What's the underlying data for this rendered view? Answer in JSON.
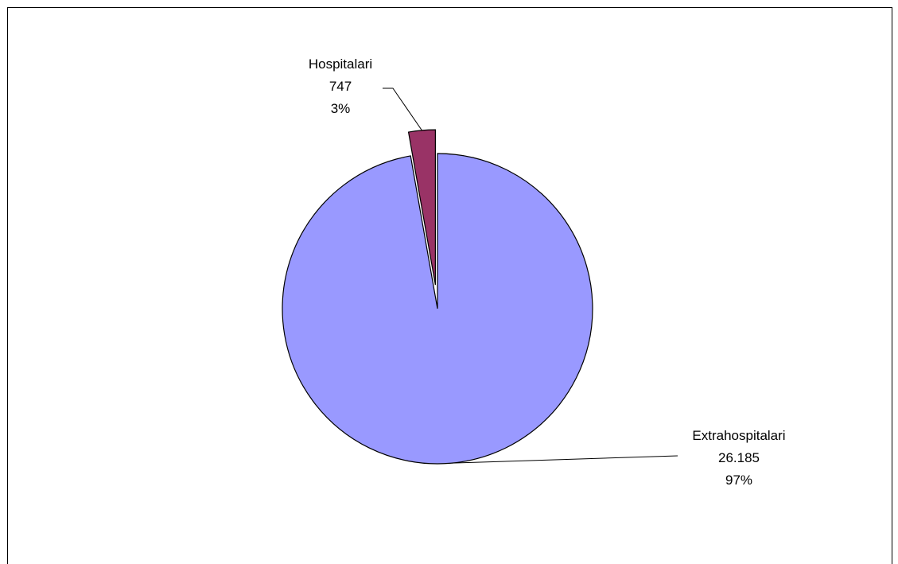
{
  "chart_data": {
    "type": "pie",
    "slices": [
      {
        "label": "Hospitalari",
        "value": 747,
        "value_label": "747",
        "percent_label": "3%",
        "color": "#993366",
        "exploded": true
      },
      {
        "label": "Extrahospitalari",
        "value": 26185,
        "value_label": "26.185",
        "percent_label": "97%",
        "color": "#9999FF",
        "exploded": false
      }
    ],
    "start": "12 o'clock",
    "direction": "counter-clockwise",
    "legend": "none",
    "labels": "outside with leader lines"
  }
}
